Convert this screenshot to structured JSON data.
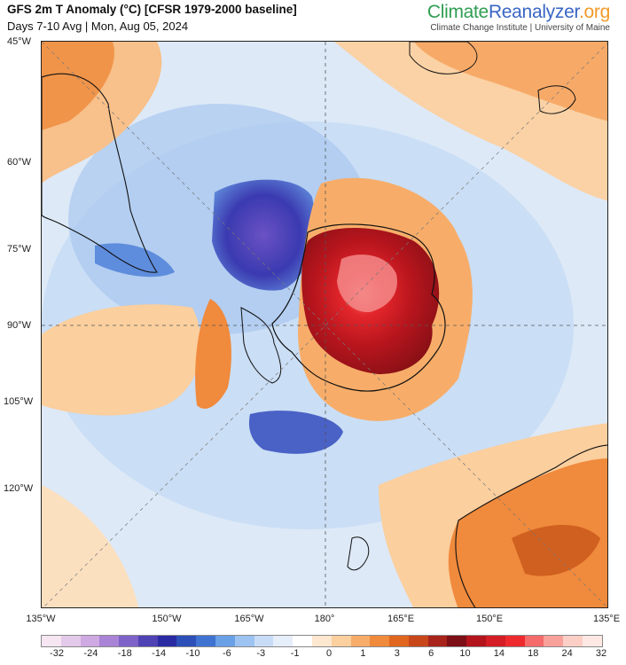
{
  "header": {
    "title": "GFS 2m T Anomaly (°C) [CFSR 1979-2000 baseline]",
    "subtitle": "Days 7-10 Avg | Mon, Aug 05, 2024",
    "brand_part1": "Climate",
    "brand_part2": "Reanalyzer",
    "brand_part3": ".org",
    "brand_sub": "Climate Change Institute | University of Maine"
  },
  "lat_labels": [
    "45°W",
    "60°W",
    "75°W",
    "90°W",
    "105°W",
    "120°W"
  ],
  "lon_labels": [
    "135°W",
    "150°W",
    "165°W",
    "180°",
    "165°E",
    "150°E",
    "135°E"
  ],
  "legend": {
    "ticks": [
      "-32",
      "-24",
      "-18",
      "-14",
      "-10",
      "-6",
      "-3",
      "-1",
      "0",
      "1",
      "3",
      "6",
      "10",
      "14",
      "18",
      "24",
      "32"
    ],
    "colors": [
      "#f5e6f2",
      "#e3c9ea",
      "#cfa9e2",
      "#a983d6",
      "#7e62c9",
      "#4f42b4",
      "#2a2aa3",
      "#2d4fb8",
      "#3f73d1",
      "#6aa0e6",
      "#9cc3f2",
      "#c8dcf7",
      "#e6eefa",
      "#ffffff",
      "#fde7cf",
      "#fbcf9e",
      "#f7ad69",
      "#f08a3c",
      "#e0661f",
      "#c9461a",
      "#a8231a",
      "#7d0f16",
      "#b4141c",
      "#d41d24",
      "#ee2a2e",
      "#f56a6a",
      "#f8a09a",
      "#fbcfc6",
      "#fde8e4"
    ]
  }
}
